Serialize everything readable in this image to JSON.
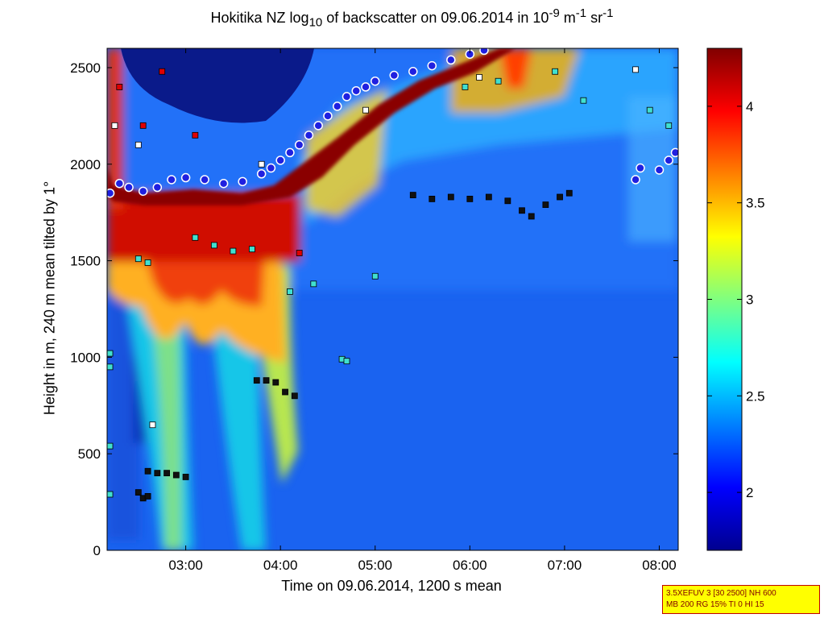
{
  "chart_data": {
    "type": "heatmap",
    "title": {
      "prefix": "Hokitika NZ log",
      "sub": "10",
      "mid": " of backscatter on 09.06.2014 in 10",
      "exp1": "-9",
      "m_unit": " m",
      "exp2": "-1",
      "sr_unit": " sr",
      "exp3": "-1"
    },
    "xlabel": "Time on 09.06.2014, 1200 s mean",
    "ylabel": "Height in m, 240 m mean tilted by 1°",
    "xlim_hours": [
      2.17,
      8.2
    ],
    "ylim": [
      0,
      2600
    ],
    "x_ticks": [
      {
        "label": "03:00",
        "hour": 3
      },
      {
        "label": "04:00",
        "hour": 4
      },
      {
        "label": "05:00",
        "hour": 5
      },
      {
        "label": "06:00",
        "hour": 6
      },
      {
        "label": "07:00",
        "hour": 7
      },
      {
        "label": "08:00",
        "hour": 8
      }
    ],
    "y_ticks": [
      0,
      500,
      1000,
      1500,
      2000,
      2500
    ],
    "colorbar": {
      "range": [
        1.7,
        4.3
      ],
      "ticks": [
        "2",
        "2.5",
        "3",
        "3.5",
        "4"
      ],
      "tick_values": [
        2,
        2.5,
        3,
        3.5,
        4
      ],
      "colormap": "jet"
    },
    "cloud_base_blue_circles": [
      [
        2.2,
        1850
      ],
      [
        2.3,
        1900
      ],
      [
        2.4,
        1880
      ],
      [
        2.55,
        1860
      ],
      [
        2.7,
        1880
      ],
      [
        2.85,
        1920
      ],
      [
        3.0,
        1930
      ],
      [
        3.2,
        1920
      ],
      [
        3.4,
        1900
      ],
      [
        3.6,
        1910
      ],
      [
        3.8,
        1950
      ],
      [
        3.9,
        1980
      ],
      [
        4.0,
        2020
      ],
      [
        4.1,
        2060
      ],
      [
        4.2,
        2100
      ],
      [
        4.3,
        2150
      ],
      [
        4.4,
        2200
      ],
      [
        4.5,
        2250
      ],
      [
        4.6,
        2300
      ],
      [
        4.7,
        2350
      ],
      [
        4.8,
        2380
      ],
      [
        4.9,
        2400
      ],
      [
        5.0,
        2430
      ],
      [
        5.2,
        2460
      ],
      [
        5.4,
        2480
      ],
      [
        5.6,
        2510
      ],
      [
        5.8,
        2540
      ],
      [
        6.0,
        2570
      ],
      [
        6.15,
        2590
      ],
      [
        7.75,
        1920
      ],
      [
        7.8,
        1980
      ],
      [
        8.0,
        1970
      ],
      [
        8.1,
        2020
      ],
      [
        8.17,
        2060
      ]
    ],
    "aerosol_layer_black_squares": [
      [
        5.4,
        1840
      ],
      [
        5.6,
        1820
      ],
      [
        5.8,
        1830
      ],
      [
        6.0,
        1820
      ],
      [
        6.2,
        1830
      ],
      [
        6.4,
        1810
      ],
      [
        6.55,
        1760
      ],
      [
        6.65,
        1730
      ],
      [
        6.8,
        1790
      ],
      [
        6.95,
        1830
      ],
      [
        7.05,
        1850
      ],
      [
        3.75,
        880
      ],
      [
        3.85,
        880
      ],
      [
        3.95,
        870
      ],
      [
        4.05,
        820
      ],
      [
        4.15,
        800
      ],
      [
        2.6,
        410
      ],
      [
        2.7,
        400
      ],
      [
        2.8,
        400
      ],
      [
        2.9,
        390
      ],
      [
        3.0,
        380
      ],
      [
        2.5,
        300
      ],
      [
        2.55,
        270
      ],
      [
        2.6,
        280
      ]
    ],
    "cyan_squares": [
      [
        3.1,
        1620
      ],
      [
        3.3,
        1580
      ],
      [
        3.5,
        1550
      ],
      [
        3.7,
        1560
      ],
      [
        4.1,
        1340
      ],
      [
        4.35,
        1380
      ],
      [
        4.65,
        990
      ],
      [
        4.7,
        980
      ],
      [
        5.0,
        1420
      ],
      [
        2.5,
        1510
      ],
      [
        2.6,
        1490
      ],
      [
        7.2,
        2330
      ],
      [
        7.9,
        2280
      ],
      [
        8.1,
        2200
      ],
      [
        2.2,
        1020
      ],
      [
        2.2,
        950
      ],
      [
        2.2,
        540
      ],
      [
        2.2,
        290
      ],
      [
        6.9,
        2480
      ],
      [
        6.3,
        2430
      ],
      [
        5.95,
        2400
      ]
    ],
    "white_squares": [
      [
        2.65,
        650
      ],
      [
        2.25,
        2200
      ],
      [
        2.5,
        2100
      ],
      [
        3.8,
        2000
      ],
      [
        4.9,
        2280
      ],
      [
        6.1,
        2450
      ],
      [
        7.75,
        2490
      ]
    ],
    "red_squares": [
      [
        2.3,
        2400
      ],
      [
        2.75,
        2480
      ],
      [
        3.1,
        2150
      ],
      [
        4.2,
        1540
      ],
      [
        2.55,
        2200
      ]
    ]
  },
  "info_box": {
    "line1": "3.5XEFUV 3 [30 2500] NH 600",
    "line2": "MB 200 RG 15% TI 0 HI 15"
  }
}
